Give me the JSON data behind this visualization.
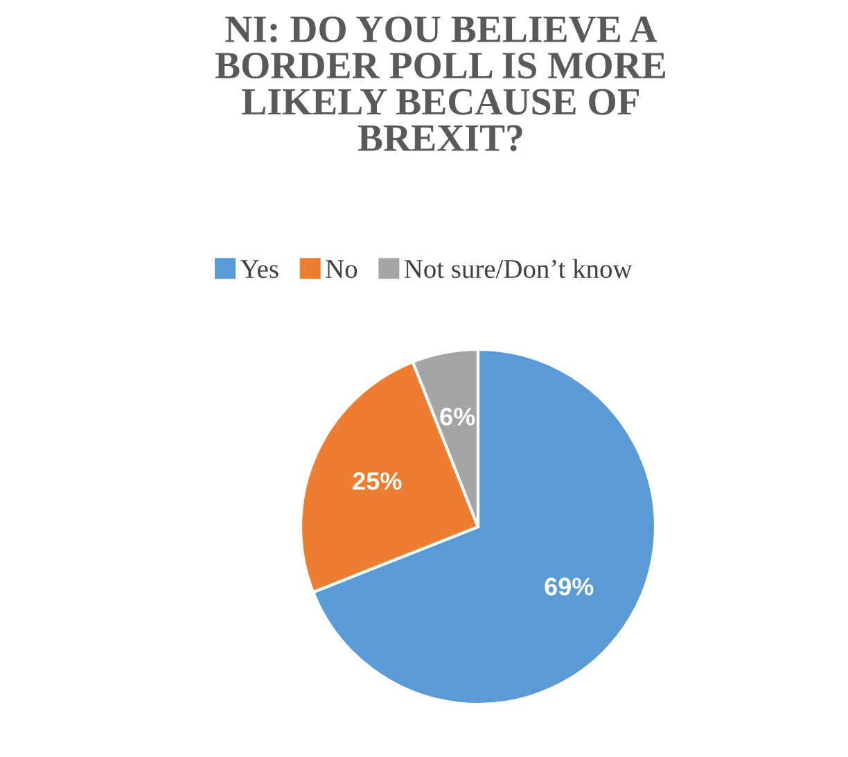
{
  "chart_data": {
    "type": "pie",
    "title": "NI: DO YOU BELIEVE A\nBORDER POLL IS MORE\nLIKELY BECAUSE OF\nBREXIT?",
    "categories": [
      "Yes",
      "No",
      "Not sure/Don’t know"
    ],
    "values": [
      69,
      25,
      6
    ],
    "colors": [
      "#5b9bd5",
      "#ed7d31",
      "#a5a5a5"
    ],
    "value_labels": [
      "69%",
      "25%",
      "6%"
    ],
    "legend": "top"
  }
}
